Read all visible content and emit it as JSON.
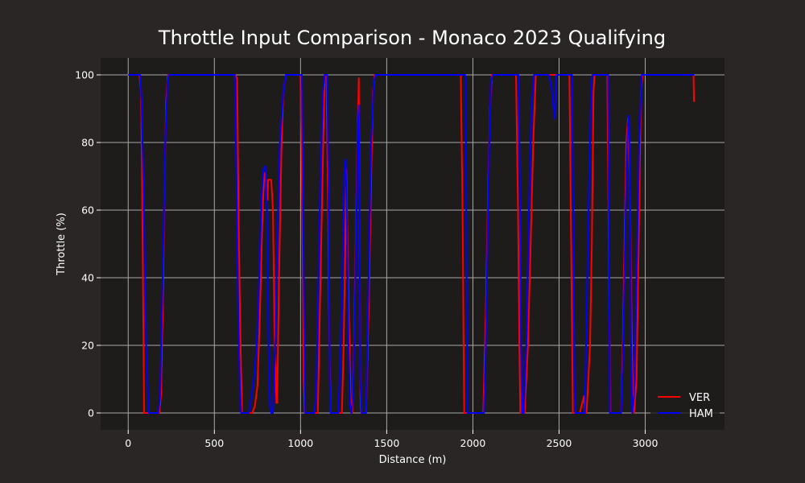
{
  "chart_data": {
    "type": "line",
    "title": "Throttle Input Comparison - Monaco 2023 Qualifying",
    "xlabel": "Distance (m)",
    "ylabel": "Throttle (%)",
    "xlim": [
      -160,
      3460
    ],
    "ylim": [
      -5,
      105
    ],
    "xticks": [
      0,
      500,
      1000,
      1500,
      2000,
      2500,
      3000
    ],
    "yticks": [
      0,
      20,
      40,
      60,
      80,
      100
    ],
    "grid": true,
    "legend_position": "lower-right",
    "colors": {
      "background": "#292625",
      "plot_background": "#1e1c1b",
      "grid": "#a8a8a8",
      "text": "#ffffff"
    },
    "series": [
      {
        "name": "VER",
        "color": "#ff0000",
        "points": [
          [
            0,
            100
          ],
          [
            65,
            100
          ],
          [
            75,
            95
          ],
          [
            82,
            60
          ],
          [
            88,
            25
          ],
          [
            92,
            0
          ],
          [
            110,
            0
          ],
          [
            180,
            0
          ],
          [
            190,
            5
          ],
          [
            200,
            30
          ],
          [
            210,
            65
          ],
          [
            220,
            92
          ],
          [
            230,
            100
          ],
          [
            620,
            100
          ],
          [
            632,
            99
          ],
          [
            640,
            60
          ],
          [
            650,
            25
          ],
          [
            660,
            0
          ],
          [
            720,
            0
          ],
          [
            735,
            2
          ],
          [
            750,
            8
          ],
          [
            765,
            30
          ],
          [
            780,
            60
          ],
          [
            790,
            71
          ],
          [
            800,
            68
          ],
          [
            808,
            63
          ],
          [
            812,
            69
          ],
          [
            830,
            69
          ],
          [
            840,
            60
          ],
          [
            850,
            20
          ],
          [
            860,
            3
          ],
          [
            865,
            3
          ],
          [
            875,
            40
          ],
          [
            890,
            80
          ],
          [
            900,
            95
          ],
          [
            915,
            100
          ],
          [
            1000,
            100
          ],
          [
            1010,
            60
          ],
          [
            1018,
            10
          ],
          [
            1025,
            0
          ],
          [
            1100,
            0
          ],
          [
            1120,
            50
          ],
          [
            1140,
            100
          ],
          [
            1150,
            100
          ],
          [
            1160,
            60
          ],
          [
            1168,
            20
          ],
          [
            1175,
            0
          ],
          [
            1240,
            0
          ],
          [
            1250,
            20
          ],
          [
            1260,
            50
          ],
          [
            1265,
            72
          ],
          [
            1270,
            60
          ],
          [
            1280,
            30
          ],
          [
            1290,
            5
          ],
          [
            1300,
            0
          ],
          [
            1310,
            20
          ],
          [
            1320,
            50
          ],
          [
            1330,
            80
          ],
          [
            1338,
            99
          ],
          [
            1342,
            60
          ],
          [
            1345,
            30
          ],
          [
            1348,
            5
          ],
          [
            1352,
            0
          ],
          [
            1380,
            0
          ],
          [
            1395,
            30
          ],
          [
            1410,
            70
          ],
          [
            1420,
            95
          ],
          [
            1430,
            100
          ],
          [
            1930,
            100
          ],
          [
            1940,
            60
          ],
          [
            1945,
            25
          ],
          [
            1950,
            0
          ],
          [
            2060,
            0
          ],
          [
            2075,
            30
          ],
          [
            2090,
            70
          ],
          [
            2100,
            90
          ],
          [
            2110,
            100
          ],
          [
            2250,
            100
          ],
          [
            2262,
            60
          ],
          [
            2270,
            20
          ],
          [
            2275,
            0
          ],
          [
            2300,
            0
          ],
          [
            2310,
            10
          ],
          [
            2320,
            20
          ],
          [
            2335,
            50
          ],
          [
            2350,
            80
          ],
          [
            2365,
            100
          ],
          [
            2560,
            100
          ],
          [
            2570,
            50
          ],
          [
            2578,
            10
          ],
          [
            2580,
            0
          ],
          [
            2620,
            0
          ],
          [
            2630,
            2
          ],
          [
            2645,
            5
          ],
          [
            2650,
            0
          ],
          [
            2660,
            0
          ],
          [
            2680,
            20
          ],
          [
            2690,
            50
          ],
          [
            2700,
            95
          ],
          [
            2705,
            100
          ],
          [
            2780,
            100
          ],
          [
            2790,
            40
          ],
          [
            2797,
            0
          ],
          [
            2860,
            0
          ],
          [
            2870,
            20
          ],
          [
            2880,
            50
          ],
          [
            2890,
            80
          ],
          [
            2900,
            87
          ],
          [
            2910,
            70
          ],
          [
            2920,
            30
          ],
          [
            2928,
            5
          ],
          [
            2935,
            0
          ],
          [
            2950,
            10
          ],
          [
            2965,
            60
          ],
          [
            2975,
            95
          ],
          [
            2985,
            100
          ],
          [
            3280,
            100
          ],
          [
            3283,
            92
          ]
        ]
      },
      {
        "name": "HAM",
        "color": "#0000ff",
        "points": [
          [
            0,
            100
          ],
          [
            70,
            100
          ],
          [
            78,
            92
          ],
          [
            85,
            75
          ],
          [
            95,
            50
          ],
          [
            105,
            20
          ],
          [
            115,
            5
          ],
          [
            120,
            0
          ],
          [
            175,
            0
          ],
          [
            185,
            5
          ],
          [
            200,
            40
          ],
          [
            215,
            80
          ],
          [
            228,
            98
          ],
          [
            235,
            100
          ],
          [
            610,
            100
          ],
          [
            618,
            100
          ],
          [
            628,
            70
          ],
          [
            638,
            30
          ],
          [
            648,
            8
          ],
          [
            655,
            0
          ],
          [
            700,
            0
          ],
          [
            715,
            5
          ],
          [
            730,
            10
          ],
          [
            745,
            20
          ],
          [
            760,
            40
          ],
          [
            775,
            65
          ],
          [
            785,
            72
          ],
          [
            795,
            73
          ],
          [
            805,
            60
          ],
          [
            815,
            20
          ],
          [
            823,
            2
          ],
          [
            830,
            0
          ],
          [
            840,
            0
          ],
          [
            850,
            15
          ],
          [
            865,
            50
          ],
          [
            880,
            80
          ],
          [
            900,
            95
          ],
          [
            915,
            100
          ],
          [
            1000,
            100
          ],
          [
            1008,
            100
          ],
          [
            1015,
            60
          ],
          [
            1022,
            20
          ],
          [
            1028,
            0
          ],
          [
            1080,
            0
          ],
          [
            1090,
            5
          ],
          [
            1100,
            30
          ],
          [
            1115,
            70
          ],
          [
            1130,
            95
          ],
          [
            1140,
            100
          ],
          [
            1155,
            100
          ],
          [
            1162,
            70
          ],
          [
            1170,
            10
          ],
          [
            1175,
            0
          ],
          [
            1220,
            0
          ],
          [
            1230,
            15
          ],
          [
            1240,
            35
          ],
          [
            1248,
            55
          ],
          [
            1255,
            72
          ],
          [
            1262,
            75
          ],
          [
            1268,
            60
          ],
          [
            1278,
            20
          ],
          [
            1288,
            2
          ],
          [
            1295,
            0
          ],
          [
            1305,
            5
          ],
          [
            1315,
            30
          ],
          [
            1325,
            60
          ],
          [
            1333,
            85
          ],
          [
            1338,
            91
          ],
          [
            1342,
            60
          ],
          [
            1347,
            10
          ],
          [
            1355,
            0
          ],
          [
            1380,
            0
          ],
          [
            1395,
            40
          ],
          [
            1410,
            80
          ],
          [
            1425,
            98
          ],
          [
            1435,
            100
          ],
          [
            1955,
            100
          ],
          [
            1960,
            80
          ],
          [
            1965,
            30
          ],
          [
            1970,
            0
          ],
          [
            2065,
            0
          ],
          [
            2075,
            20
          ],
          [
            2085,
            50
          ],
          [
            2095,
            80
          ],
          [
            2105,
            98
          ],
          [
            2115,
            100
          ],
          [
            2265,
            100
          ],
          [
            2272,
            70
          ],
          [
            2280,
            20
          ],
          [
            2285,
            0
          ],
          [
            2295,
            0
          ],
          [
            2310,
            20
          ],
          [
            2325,
            60
          ],
          [
            2340,
            90
          ],
          [
            2355,
            100
          ],
          [
            2420,
            100
          ],
          [
            2440,
            100
          ],
          [
            2455,
            97
          ],
          [
            2465,
            92
          ],
          [
            2470,
            89
          ],
          [
            2475,
            87
          ],
          [
            2480,
            95
          ],
          [
            2485,
            100
          ],
          [
            2575,
            100
          ],
          [
            2582,
            60
          ],
          [
            2590,
            10
          ],
          [
            2595,
            0
          ],
          [
            2650,
            0
          ],
          [
            2660,
            30
          ],
          [
            2675,
            70
          ],
          [
            2688,
            98
          ],
          [
            2695,
            100
          ],
          [
            2785,
            100
          ],
          [
            2790,
            50
          ],
          [
            2795,
            0
          ],
          [
            2860,
            0
          ],
          [
            2870,
            15
          ],
          [
            2880,
            40
          ],
          [
            2890,
            70
          ],
          [
            2900,
            85
          ],
          [
            2905,
            88
          ],
          [
            2910,
            75
          ],
          [
            2918,
            20
          ],
          [
            2925,
            0
          ],
          [
            2935,
            5
          ],
          [
            2950,
            40
          ],
          [
            2965,
            80
          ],
          [
            2980,
            100
          ],
          [
            3285,
            100
          ]
        ]
      }
    ]
  }
}
